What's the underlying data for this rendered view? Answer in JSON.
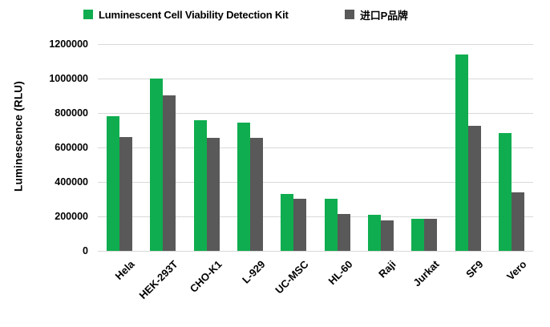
{
  "chart_data": {
    "type": "bar",
    "title": "",
    "xlabel": "",
    "ylabel": "Luminescence (RLU)",
    "categories": [
      "Hela",
      "HEK-293T",
      "CHO-K1",
      "L-929",
      "UC-MSC",
      "HL-60",
      "Raji",
      "Jurkat",
      "SF9",
      "Vero"
    ],
    "series": [
      {
        "name": "Luminescent Cell Viability Detection Kit",
        "color": "#0FAD4F",
        "values": [
          780000,
          1000000,
          760000,
          745000,
          330000,
          300000,
          210000,
          185000,
          1140000,
          685000
        ]
      },
      {
        "name": "进口P品牌",
        "color": "#595959",
        "values": [
          660000,
          900000,
          655000,
          655000,
          300000,
          215000,
          175000,
          185000,
          725000,
          340000
        ]
      }
    ],
    "ylim": [
      0,
      1200000
    ],
    "yticks": [
      0,
      200000,
      400000,
      600000,
      800000,
      1000000,
      1200000
    ],
    "grid": "horizontal",
    "gridline_color": "#D9D9D9",
    "legend_position": "top",
    "text_color": "#000000",
    "background_color": "#FFFFFF"
  }
}
